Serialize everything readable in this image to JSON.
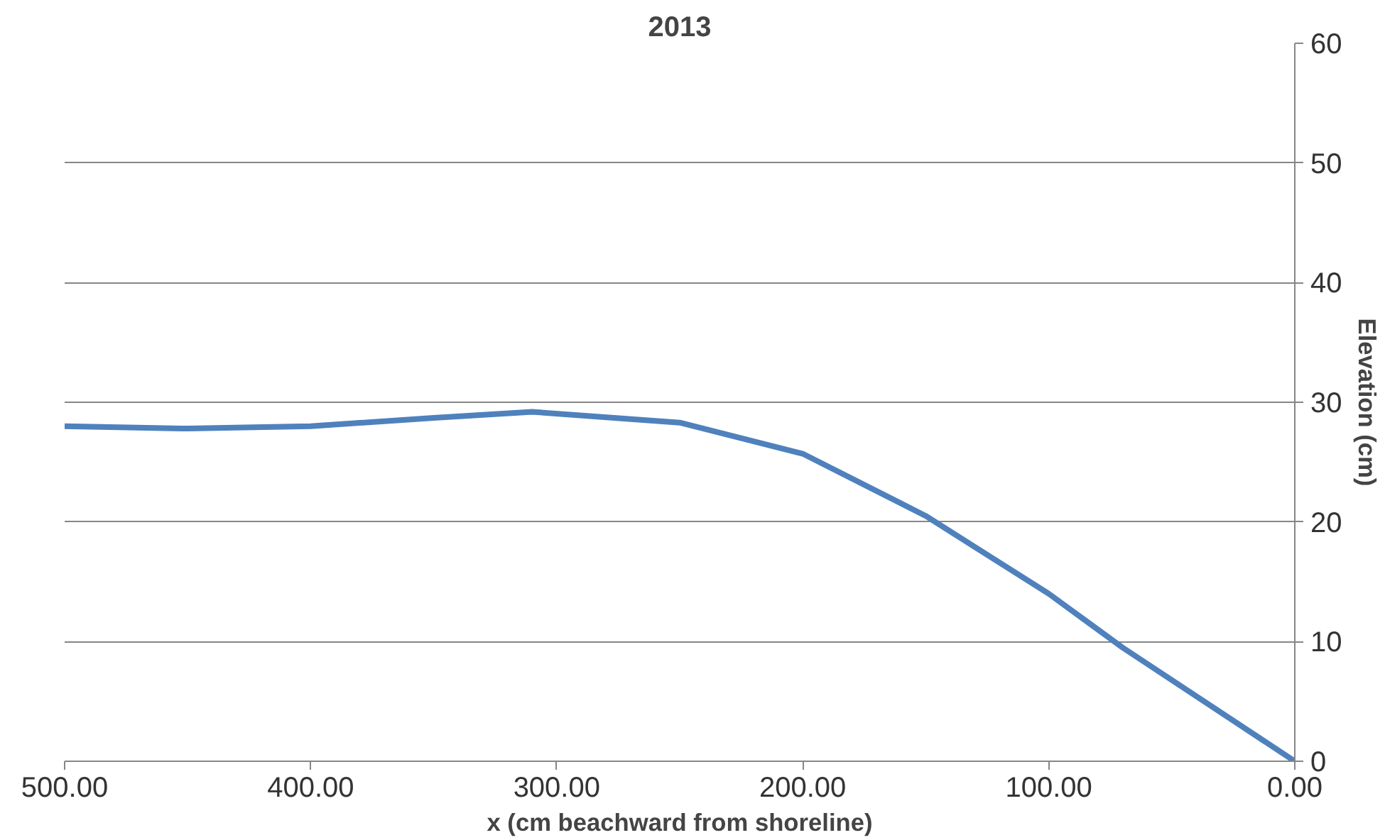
{
  "chart_data": {
    "type": "line",
    "title": "2013",
    "xlabel": "x (cm beachward from shoreline)",
    "ylabel": "Elevation (cm)",
    "x": [
      500,
      450,
      400,
      350,
      310,
      250,
      200,
      150,
      100,
      70,
      0
    ],
    "series": [
      {
        "color": "#4f81bd",
        "values": [
          28,
          27.8,
          28,
          28.7,
          29.2,
          28.3,
          25.7,
          20.5,
          14,
          9.5,
          0
        ]
      }
    ],
    "xlim": [
      500,
      0
    ],
    "ylim": [
      0,
      60
    ],
    "xticks": [
      {
        "value": 500,
        "label": "500.00"
      },
      {
        "value": 400,
        "label": "400.00"
      },
      {
        "value": 300,
        "label": "300.00"
      },
      {
        "value": 200,
        "label": "200.00"
      },
      {
        "value": 100,
        "label": "100.00"
      },
      {
        "value": 0,
        "label": "0.00"
      }
    ],
    "yticks": [
      0,
      10,
      20,
      30,
      40,
      50,
      60
    ],
    "grid": "y",
    "marker": "none",
    "line_style": "solid"
  }
}
